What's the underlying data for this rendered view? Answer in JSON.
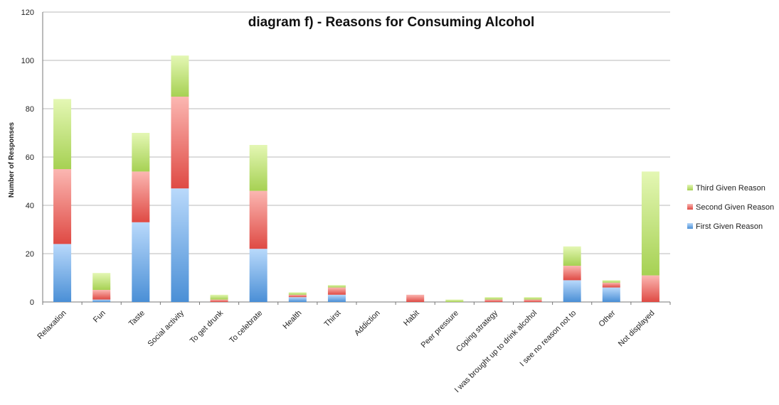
{
  "chart_data": {
    "type": "bar",
    "stacked": true,
    "title": "diagram f) - Reasons for Consuming Alcohol",
    "xlabel": "",
    "ylabel": "Number of Responses",
    "ylim": [
      0,
      120
    ],
    "yticks": [
      0,
      20,
      40,
      60,
      80,
      100,
      120
    ],
    "grid": true,
    "legend_position": "right",
    "categories": [
      "Relaxation",
      "Fun",
      "Taste",
      "Social activity",
      "To get drunk",
      "To celebrate",
      "Health",
      "Thirst",
      "Addiction",
      "Habit",
      "Peer pressure",
      "Coping strategy",
      "I was brought up to drink alcohol",
      "I see no reason not to",
      "Other",
      "Not displayed"
    ],
    "series": [
      {
        "name": "First Given Reason",
        "color": "#4a8fd6",
        "values": [
          24,
          1,
          33,
          47,
          0,
          22,
          2,
          3,
          0,
          0,
          0,
          0,
          0,
          9,
          6,
          0
        ]
      },
      {
        "name": "Second Given Reason",
        "color": "#e85b55",
        "values": [
          31,
          4,
          21,
          38,
          1,
          24,
          1,
          3,
          0,
          3,
          0,
          1,
          1,
          6,
          2,
          11
        ]
      },
      {
        "name": "Third Given Reason",
        "color": "#a6d153",
        "values": [
          29,
          7,
          16,
          17,
          2,
          19,
          1,
          1,
          0,
          0,
          1,
          1,
          1,
          8,
          1,
          43
        ]
      }
    ]
  }
}
